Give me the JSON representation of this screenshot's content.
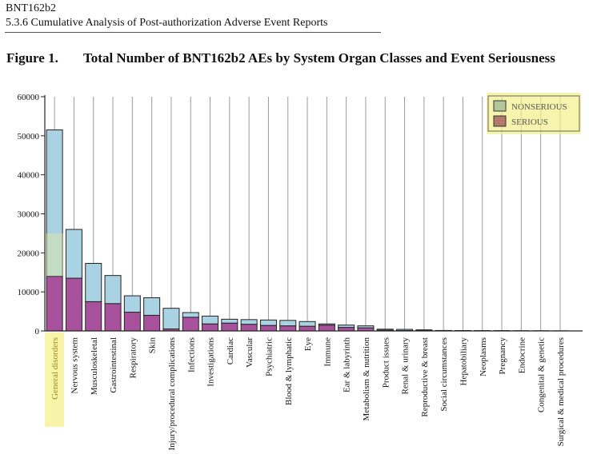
{
  "doc_header": {
    "line1": "BNT162b2",
    "line2": "5.3.6 Cumulative Analysis of Post-authorization Adverse Event Reports"
  },
  "figure": {
    "number": "Figure 1.",
    "title": "Total Number of BNT162b2 AEs by System Organ Classes and Event Seriousness"
  },
  "colors": {
    "nonserious": "#a9d2e2",
    "serious": "#a8529d",
    "legend_nonserious": "#b3c79a",
    "legend_serious": "#b27a6a",
    "highlight": "#f4f08c"
  },
  "chart_data": {
    "type": "bar",
    "stacked": true,
    "ylim": [
      0,
      60000
    ],
    "yticks": [
      0,
      10000,
      20000,
      30000,
      40000,
      50000,
      60000
    ],
    "grid": "vertical",
    "legend_position": "top-right",
    "categories": [
      "General disorders",
      "Nervous system",
      "Musculoskeletal",
      "Gastrointestinal",
      "Respiratory",
      "Skin",
      "Injury/procedural complications",
      "Infections",
      "Investigations",
      "Cardiac",
      "Vascular",
      "Psychiatric",
      "Blood & lymphatic",
      "Eye",
      "Immune",
      "Ear & labyrinth",
      "Metabolism & nutrition",
      "Product issues",
      "Renal & urinary",
      "Reproductive & breast",
      "Social circumstances",
      "Hepatobiliary",
      "Neoplasms",
      "Pregnancy",
      "Endocrine",
      "Congenital & genetic",
      "Surgical & medical procedures"
    ],
    "series": [
      {
        "name": "SERIOUS",
        "values": [
          14000,
          13500,
          7500,
          7000,
          4800,
          4000,
          500,
          3500,
          1800,
          2000,
          1700,
          1400,
          1300,
          1200,
          1500,
          900,
          800,
          200,
          100,
          80,
          60,
          50,
          40,
          30,
          20,
          15,
          10
        ]
      },
      {
        "name": "NONSERIOUS",
        "values": [
          37500,
          12500,
          9800,
          7200,
          4200,
          4500,
          5300,
          1200,
          2000,
          1000,
          1200,
          1400,
          1400,
          1200,
          300,
          600,
          500,
          250,
          300,
          200,
          60,
          50,
          40,
          50,
          30,
          25,
          20
        ]
      }
    ]
  }
}
